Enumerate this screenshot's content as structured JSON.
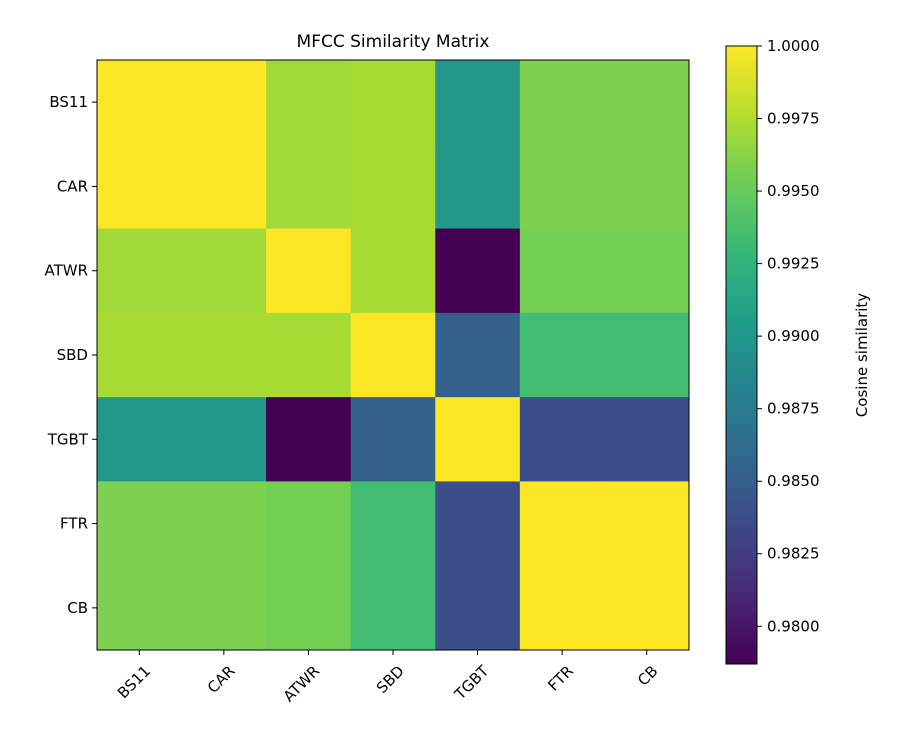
{
  "chart_data": {
    "type": "heatmap",
    "title": "MFCC Similarity Matrix",
    "x_labels": [
      "BS11",
      "CAR",
      "ATWR",
      "SBD",
      "TGBT",
      "FTR",
      "CB"
    ],
    "y_labels": [
      "BS11",
      "CAR",
      "ATWR",
      "SBD",
      "TGBT",
      "FTR",
      "CB"
    ],
    "values": [
      [
        1.0,
        1.0,
        0.997,
        0.9972,
        0.99,
        0.9958,
        0.9958
      ],
      [
        1.0,
        1.0,
        0.997,
        0.9972,
        0.99,
        0.9958,
        0.9958
      ],
      [
        0.997,
        0.997,
        1.0,
        0.9972,
        0.9787,
        0.9955,
        0.9955
      ],
      [
        0.9972,
        0.9972,
        0.9972,
        1.0,
        0.9852,
        0.9935,
        0.9935
      ],
      [
        0.99,
        0.99,
        0.9787,
        0.9852,
        1.0,
        0.9838,
        0.9838
      ],
      [
        0.9958,
        0.9958,
        0.9955,
        0.9935,
        0.9838,
        1.0,
        1.0
      ],
      [
        0.9958,
        0.9958,
        0.9955,
        0.9935,
        0.9838,
        1.0,
        1.0
      ]
    ],
    "colormap": "viridis",
    "colorbar": {
      "label": "Cosine similarity",
      "range": [
        0.9787,
        1.0
      ],
      "ticks": [
        "0.9800",
        "0.9825",
        "0.9850",
        "0.9875",
        "0.9900",
        "0.9925",
        "0.9950",
        "0.9975",
        "1.0000"
      ]
    }
  }
}
